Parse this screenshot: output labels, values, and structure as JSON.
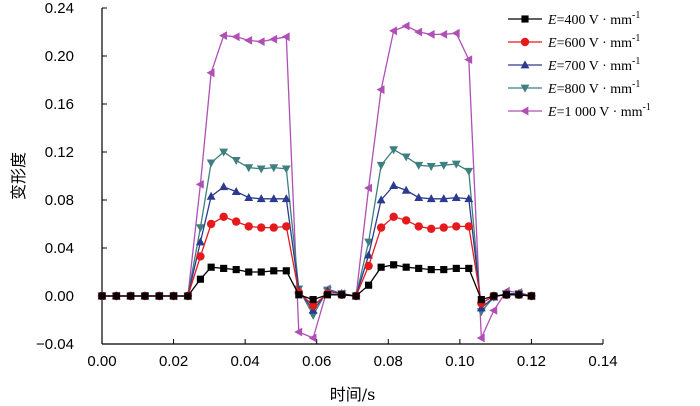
{
  "chart_data": {
    "type": "line",
    "title": "",
    "xlabel": "时间/s",
    "ylabel": "变形度",
    "xlim": [
      0,
      0.14
    ],
    "ylim": [
      -0.04,
      0.24
    ],
    "xticks": [
      "0.00",
      "0.02",
      "0.04",
      "0.06",
      "0.08",
      "0.10",
      "0.12",
      "0.14"
    ],
    "yticks": [
      "-0.04",
      "0.00",
      "0.04",
      "0.08",
      "0.12",
      "0.16",
      "0.20",
      "0.24"
    ],
    "legend_position": "top-right",
    "x": [
      0,
      0.004,
      0.008,
      0.012,
      0.016,
      0.02,
      0.024,
      0.0275,
      0.0305,
      0.034,
      0.0375,
      0.041,
      0.0445,
      0.048,
      0.0515,
      0.055,
      0.059,
      0.063,
      0.067,
      0.071,
      0.0745,
      0.078,
      0.0815,
      0.085,
      0.0885,
      0.092,
      0.0955,
      0.099,
      0.1025,
      0.106,
      0.1095,
      0.113,
      0.1165,
      0.12
    ],
    "series": [
      {
        "name": "E=400 V · mm⁻¹",
        "legend_label": "E=400 V · mm",
        "color": "#000000",
        "marker": "square",
        "values": [
          0,
          0,
          0,
          0,
          0,
          0,
          0,
          0.014,
          0.024,
          0.023,
          0.022,
          0.02,
          0.02,
          0.021,
          0.021,
          0.001,
          -0.003,
          0.001,
          0.001,
          0.0,
          0.009,
          0.024,
          0.026,
          0.024,
          0.023,
          0.022,
          0.022,
          0.023,
          0.023,
          -0.003,
          0.0,
          0.001,
          0.001,
          0.0
        ]
      },
      {
        "name": "E=600 V · mm⁻¹",
        "legend_label": "E=600 V · mm",
        "color": "#e41a1c",
        "marker": "circle",
        "values": [
          0,
          0,
          0,
          0,
          0,
          0,
          0,
          0.033,
          0.06,
          0.066,
          0.062,
          0.058,
          0.057,
          0.057,
          0.058,
          0.003,
          -0.008,
          0.002,
          0.001,
          0.0,
          0.025,
          0.057,
          0.066,
          0.063,
          0.058,
          0.056,
          0.057,
          0.058,
          0.058,
          -0.006,
          0.0,
          0.001,
          0.001,
          0.0
        ]
      },
      {
        "name": "E=700 V · mm⁻¹",
        "legend_label": "E=700 V · mm",
        "color": "#2b3b8f",
        "marker": "triangle-up",
        "values": [
          0,
          0,
          0,
          0,
          0,
          0,
          0,
          0.045,
          0.083,
          0.091,
          0.087,
          0.082,
          0.081,
          0.081,
          0.081,
          0.005,
          -0.012,
          0.004,
          0.002,
          0.0,
          0.034,
          0.08,
          0.092,
          0.088,
          0.082,
          0.081,
          0.081,
          0.082,
          0.081,
          -0.01,
          -0.001,
          0.002,
          0.002,
          0.0
        ]
      },
      {
        "name": "E=800 V · mm⁻¹",
        "legend_label": "E=800 V · mm",
        "color": "#3f7f7f",
        "marker": "triangle-down",
        "values": [
          0,
          0,
          0,
          0,
          0,
          0,
          0,
          0.057,
          0.111,
          0.12,
          0.113,
          0.107,
          0.106,
          0.107,
          0.106,
          0.006,
          -0.016,
          0.005,
          0.002,
          0.0,
          0.045,
          0.109,
          0.122,
          0.116,
          0.109,
          0.108,
          0.109,
          0.11,
          0.104,
          -0.013,
          -0.001,
          0.002,
          0.002,
          0.0
        ]
      },
      {
        "name": "E=1 000 V · mm⁻¹",
        "legend_label": "E=1 000 V · mm",
        "color": "#b04fb6",
        "marker": "triangle-left",
        "values": [
          0,
          0,
          0,
          0,
          0,
          0,
          0,
          0.093,
          0.186,
          0.217,
          0.216,
          0.213,
          0.212,
          0.214,
          0.216,
          -0.03,
          -0.035,
          0.006,
          0.002,
          0.0,
          0.09,
          0.172,
          0.221,
          0.225,
          0.22,
          0.218,
          0.218,
          0.219,
          0.197,
          -0.035,
          -0.012,
          0.004,
          0.003,
          0.0
        ]
      }
    ],
    "legend_superscript": "-1"
  }
}
